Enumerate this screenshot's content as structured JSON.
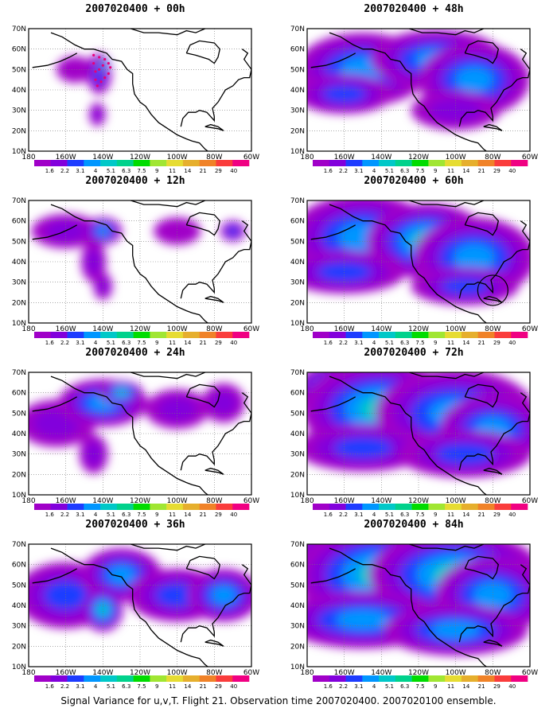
{
  "caption": "Signal Variance for u,v,T. Flight 21. Observation time 2007020400. 2007020100 ensemble.",
  "axes": {
    "lat_labels": [
      "70N",
      "60N",
      "50N",
      "40N",
      "30N",
      "20N",
      "10N"
    ],
    "lon_labels": [
      "180",
      "160W",
      "140W",
      "120W",
      "100W",
      "80W",
      "60W"
    ]
  },
  "colorbar": {
    "labels": [
      "1.6",
      "2.2",
      "3.1",
      "4",
      "5.1",
      "6.3",
      "7.5",
      "9",
      "11",
      "14",
      "21",
      "29",
      "40"
    ],
    "colors": [
      "#a000c8",
      "#8200dc",
      "#1e3cff",
      "#0096ff",
      "#00c8c8",
      "#00d28c",
      "#00dc00",
      "#a0e632",
      "#e6dc32",
      "#e6af2d",
      "#f08228",
      "#fa3c3c",
      "#f00082"
    ]
  },
  "panels": [
    {
      "title": "2007020400 + 00h",
      "level": 1,
      "dots": true,
      "circle": false
    },
    {
      "title": "2007020400 + 12h",
      "level": 2,
      "dots": false,
      "circle": false
    },
    {
      "title": "2007020400 + 24h",
      "level": 3,
      "dots": false,
      "circle": false
    },
    {
      "title": "2007020400 + 36h",
      "level": 4,
      "dots": false,
      "circle": false
    },
    {
      "title": "2007020400 + 48h",
      "level": 5,
      "dots": false,
      "circle": false
    },
    {
      "title": "2007020400 + 60h",
      "level": 6,
      "dots": false,
      "circle": true
    },
    {
      "title": "2007020400 + 72h",
      "level": 7,
      "dots": false,
      "circle": false
    },
    {
      "title": "2007020400 + 84h",
      "level": 8,
      "dots": false,
      "circle": false
    }
  ]
}
